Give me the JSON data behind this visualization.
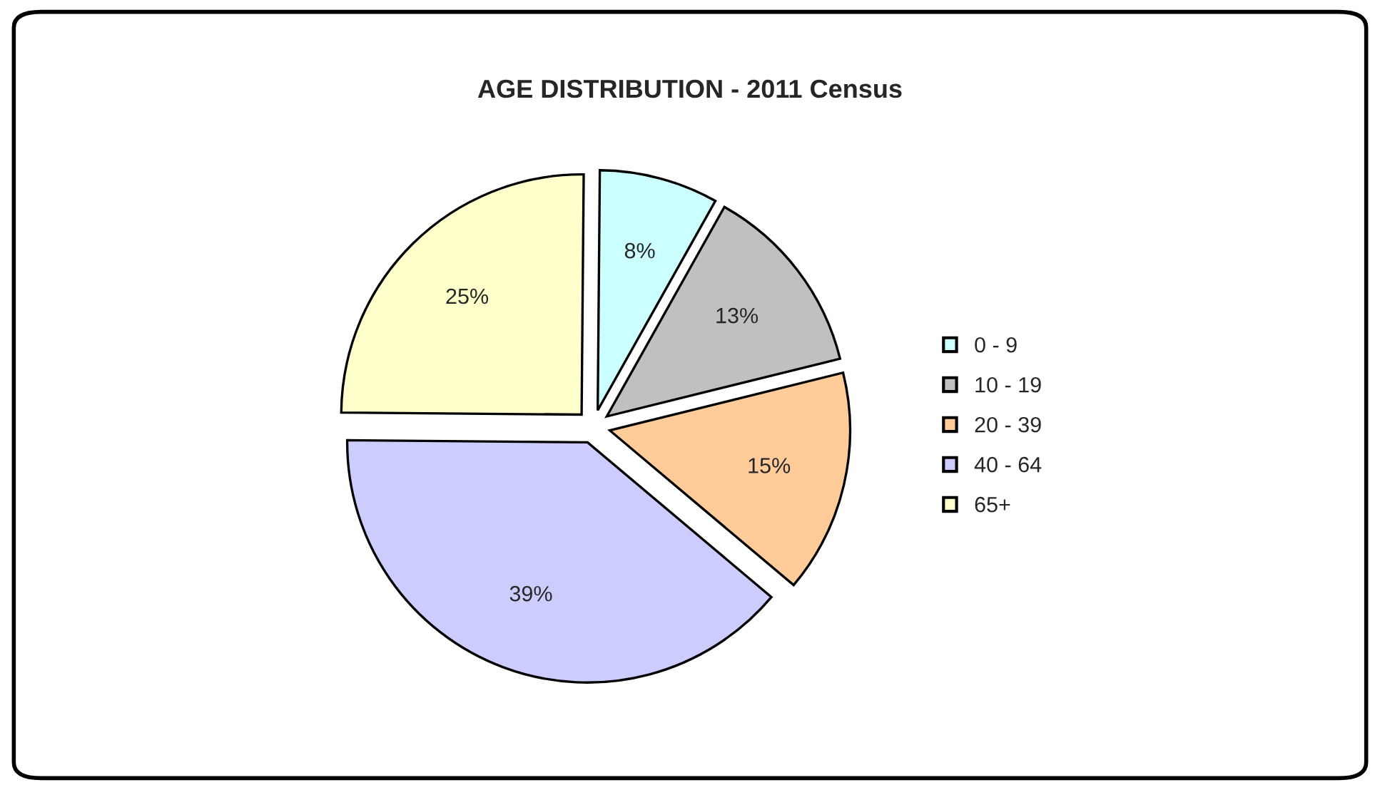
{
  "chart_data": {
    "type": "pie",
    "title": "AGE DISTRIBUTION - 2011 Census",
    "categories": [
      "0 - 9",
      "10 - 19",
      "20 - 39",
      "40 - 64",
      "65+"
    ],
    "values": [
      8,
      13,
      15,
      39,
      25
    ],
    "colors": [
      "#ccffff",
      "#c0c0c0",
      "#ffcc99",
      "#ccccff",
      "#ffffcc"
    ],
    "value_labels": [
      "8%",
      "13%",
      "15%",
      "39%",
      "25%"
    ],
    "legend": "right"
  }
}
